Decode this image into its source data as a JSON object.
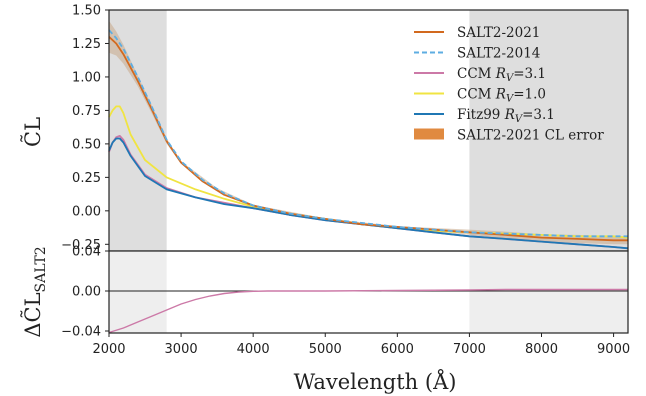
{
  "chart_data": [
    {
      "type": "line",
      "ylabel": "C̃L",
      "xlim": [
        2000,
        9200
      ],
      "ylim": [
        -0.3,
        1.5
      ],
      "yticks": [
        "1.50",
        "1.25",
        "1.00",
        "0.75",
        "0.50",
        "0.25",
        "0.00",
        "−0.25"
      ],
      "ytick_values": [
        1.5,
        1.25,
        1.0,
        0.75,
        0.5,
        0.25,
        0.0,
        -0.25
      ],
      "shaded_regions": [
        [
          2000,
          2800
        ],
        [
          7000,
          9200
        ]
      ],
      "grid": false,
      "legend_position": "top-right",
      "series": [
        {
          "name": "SALT2-2021",
          "color": "#d2691e",
          "style": "solid",
          "x": [
            2000,
            2100,
            2200,
            2400,
            2600,
            2800,
            3000,
            3300,
            3600,
            4000,
            4500,
            5000,
            5500,
            6000,
            6500,
            7000,
            7500,
            8000,
            8500,
            9000,
            9200
          ],
          "y": [
            1.3,
            1.25,
            1.17,
            0.97,
            0.75,
            0.52,
            0.36,
            0.22,
            0.12,
            0.04,
            -0.02,
            -0.06,
            -0.1,
            -0.12,
            -0.14,
            -0.16,
            -0.18,
            -0.2,
            -0.21,
            -0.22,
            -0.22
          ]
        },
        {
          "name": "SALT2-2014",
          "color": "#5dade2",
          "style": "dashed",
          "x": [
            2000,
            2100,
            2200,
            2400,
            2600,
            2800,
            3000,
            3300,
            3600,
            4000,
            4500,
            5000,
            5500,
            6000,
            6500,
            7000,
            7500,
            8000,
            8500,
            9000,
            9200
          ],
          "y": [
            1.35,
            1.29,
            1.21,
            1.0,
            0.77,
            0.53,
            0.37,
            0.23,
            0.13,
            0.04,
            -0.02,
            -0.06,
            -0.09,
            -0.12,
            -0.14,
            -0.16,
            -0.17,
            -0.18,
            -0.19,
            -0.19,
            -0.19
          ]
        },
        {
          "name": "CCM R_V=3.1",
          "color": "#cc79a7",
          "style": "solid",
          "x": [
            2000,
            2050,
            2100,
            2150,
            2200,
            2300,
            2500,
            2800,
            3200,
            3600,
            4000,
            4500,
            5000,
            5500,
            6000,
            6500,
            7000,
            7500,
            8000,
            8500,
            9000,
            9200
          ],
          "y": [
            0.44,
            0.51,
            0.55,
            0.56,
            0.53,
            0.42,
            0.27,
            0.17,
            0.1,
            0.06,
            0.02,
            -0.03,
            -0.07,
            -0.1,
            -0.13,
            -0.16,
            -0.19,
            -0.21,
            -0.23,
            -0.25,
            -0.27,
            -0.28
          ]
        },
        {
          "name": "CCM R_V=1.0",
          "color": "#f0e442",
          "style": "solid",
          "x": [
            2000,
            2050,
            2100,
            2150,
            2200,
            2300,
            2500,
            2800,
            3200,
            3600,
            4000,
            4500,
            5000,
            5500,
            6000,
            6500,
            7000,
            7500,
            8000,
            8500,
            9000,
            9200
          ],
          "y": [
            0.7,
            0.75,
            0.78,
            0.78,
            0.73,
            0.57,
            0.38,
            0.25,
            0.16,
            0.09,
            0.03,
            -0.02,
            -0.06,
            -0.1,
            -0.13,
            -0.15,
            -0.16,
            -0.17,
            -0.18,
            -0.19,
            -0.19,
            -0.2
          ]
        },
        {
          "name": "Fitz99 R_V=3.1",
          "color": "#1f77b4",
          "style": "solid",
          "x": [
            2000,
            2050,
            2100,
            2150,
            2200,
            2300,
            2500,
            2800,
            3200,
            3600,
            4000,
            4500,
            5000,
            5500,
            6000,
            6500,
            7000,
            7500,
            8000,
            8500,
            9000,
            9200
          ],
          "y": [
            0.45,
            0.51,
            0.54,
            0.54,
            0.51,
            0.41,
            0.26,
            0.16,
            0.1,
            0.05,
            0.02,
            -0.03,
            -0.07,
            -0.1,
            -0.13,
            -0.16,
            -0.19,
            -0.21,
            -0.23,
            -0.25,
            -0.27,
            -0.28
          ]
        },
        {
          "name": "SALT2-2021 CL error",
          "color": "#e08a40",
          "style": "band",
          "x": [
            2000,
            2100,
            2200,
            2400,
            2600,
            2800,
            3000,
            3500,
            4000,
            5000,
            6000,
            7000,
            7500,
            8000,
            8500,
            9000,
            9200
          ],
          "y_low": [
            1.18,
            1.16,
            1.1,
            0.93,
            0.72,
            0.5,
            0.35,
            0.15,
            0.035,
            -0.065,
            -0.125,
            -0.18,
            -0.205,
            -0.225,
            -0.24,
            -0.25,
            -0.25
          ],
          "y_high": [
            1.42,
            1.34,
            1.24,
            1.01,
            0.78,
            0.54,
            0.37,
            0.17,
            0.045,
            -0.055,
            -0.115,
            -0.14,
            -0.155,
            -0.175,
            -0.18,
            -0.19,
            -0.19
          ]
        }
      ]
    },
    {
      "type": "line",
      "ylabel": "ΔC̃L",
      "ylabel_sub": "SALT2",
      "xlabel": "Wavelength (Å)",
      "xlim": [
        2000,
        9200
      ],
      "ylim": [
        -0.042,
        0.04
      ],
      "yticks": [
        "0.04",
        "0.00",
        "−0.04"
      ],
      "ytick_values": [
        0.04,
        0.0,
        -0.04
      ],
      "xticks": [
        "2000",
        "3000",
        "4000",
        "5000",
        "6000",
        "7000",
        "8000",
        "9000"
      ],
      "xtick_values": [
        2000,
        3000,
        4000,
        5000,
        6000,
        7000,
        8000,
        9000
      ],
      "shaded_regions": [
        [
          2000,
          2800
        ],
        [
          7000,
          9200
        ]
      ],
      "reference_line": 0.0,
      "series": [
        {
          "name": "",
          "color": "#cc79a7",
          "style": "solid",
          "x": [
            2000,
            2200,
            2400,
            2600,
            2800,
            3000,
            3200,
            3400,
            3600,
            3800,
            4000,
            4200,
            4500,
            5000,
            6000,
            7000,
            7500,
            8000,
            9000,
            9200
          ],
          "y": [
            -0.0415,
            -0.037,
            -0.031,
            -0.025,
            -0.019,
            -0.013,
            -0.0085,
            -0.005,
            -0.0025,
            -0.001,
            -0.0003,
            0.0,
            0.0,
            0.0,
            0.0005,
            0.001,
            0.0015,
            0.0015,
            0.0015,
            0.0015
          ]
        }
      ]
    }
  ],
  "legend": {
    "position": "top-right",
    "entries": [
      {
        "label": "SALT2-2021",
        "color": "#d2691e",
        "style": "solid"
      },
      {
        "label": "SALT2-2014",
        "color": "#5dade2",
        "style": "dashed"
      },
      {
        "label": "CCM R_V=3.1",
        "color": "#cc79a7",
        "style": "solid"
      },
      {
        "label": "CCM R_V=1.0",
        "color": "#f0e442",
        "style": "solid"
      },
      {
        "label": "Fitz99 R_V=3.1",
        "color": "#1f77b4",
        "style": "solid"
      },
      {
        "label": "SALT2-2021 CL error",
        "color": "#e08a40",
        "style": "band"
      }
    ]
  },
  "shade_color": "#e0e0e0",
  "xlabel": "Wavelength (Å)"
}
